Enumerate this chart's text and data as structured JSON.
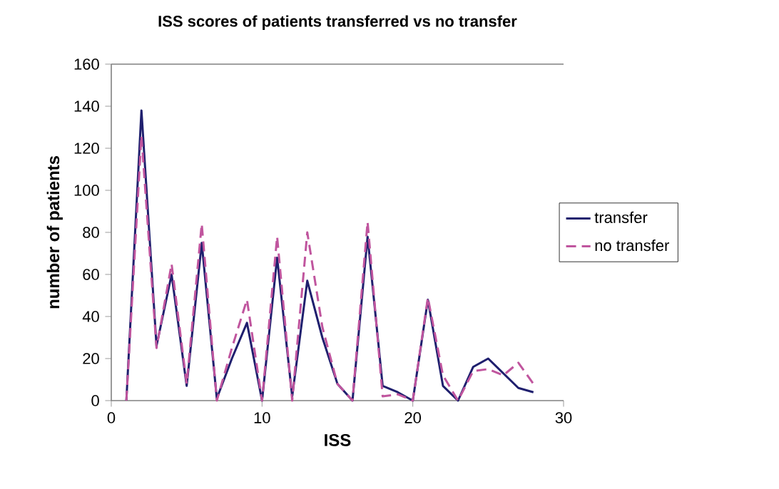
{
  "chart_data": {
    "type": "line",
    "title": "ISS scores of patients transferred vs no transfer",
    "xlabel": "ISS",
    "ylabel": "number of patients",
    "x": [
      1,
      2,
      3,
      4,
      5,
      6,
      7,
      8,
      9,
      10,
      11,
      12,
      13,
      14,
      15,
      16,
      17,
      18,
      19,
      20,
      21,
      22,
      23,
      24,
      25,
      26,
      27,
      28
    ],
    "series": [
      {
        "name": "transfer",
        "color": "#1f1f6e",
        "line_style": "solid",
        "values": [
          0,
          138,
          26,
          60,
          7,
          75,
          1,
          20,
          37,
          0,
          68,
          2,
          57,
          30,
          8,
          0,
          78,
          7,
          4,
          0,
          48,
          7,
          0,
          16,
          20,
          13,
          6,
          4
        ]
      },
      {
        "name": "no transfer",
        "color": "#c0559e",
        "line_style": "dashed",
        "values": [
          0,
          126,
          25,
          65,
          8,
          84,
          0,
          25,
          48,
          0,
          78,
          0,
          80,
          35,
          8,
          0,
          85,
          2,
          3,
          0,
          49,
          12,
          0,
          14,
          15,
          12,
          18,
          8
        ]
      }
    ],
    "xlim": [
      0,
      30
    ],
    "xticks": [
      0,
      10,
      20,
      30
    ],
    "ylim": [
      0,
      160
    ],
    "yticks": [
      0,
      20,
      40,
      60,
      80,
      100,
      120,
      140,
      160
    ],
    "grid": false,
    "legend": "right",
    "marker": "none"
  }
}
